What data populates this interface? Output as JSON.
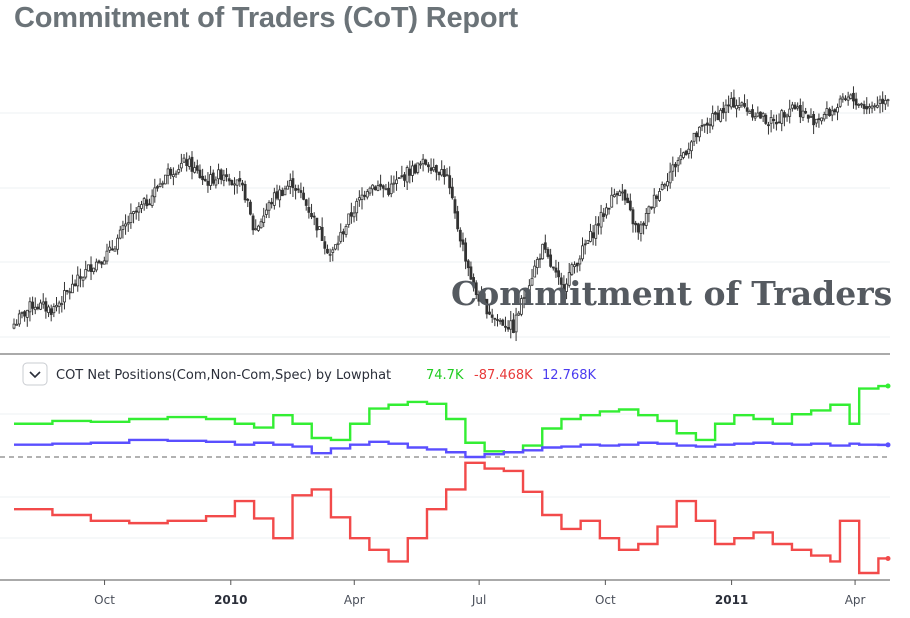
{
  "page_title": "Commitment of Traders (CoT) Report",
  "chart_data": [
    {
      "type": "candlestick",
      "title": "",
      "watermark": "Commitment of Traders",
      "x_range": [
        "2009-07-27",
        "2011-04-25"
      ],
      "y_range": [
        0,
        100
      ],
      "y_scale_note": "price axis unlabeled in image; values on relative 0-100 scale",
      "grid": true,
      "close_path": [
        {
          "x": "2009-07-27",
          "y": 4
        },
        {
          "x": "2009-08-10",
          "y": 14
        },
        {
          "x": "2009-08-24",
          "y": 11
        },
        {
          "x": "2009-09-07",
          "y": 22
        },
        {
          "x": "2009-09-21",
          "y": 33
        },
        {
          "x": "2009-10-05",
          "y": 40
        },
        {
          "x": "2009-10-19",
          "y": 56
        },
        {
          "x": "2009-11-02",
          "y": 66
        },
        {
          "x": "2009-11-16",
          "y": 80
        },
        {
          "x": "2009-11-30",
          "y": 85
        },
        {
          "x": "2009-12-14",
          "y": 75
        },
        {
          "x": "2009-12-28",
          "y": 80
        },
        {
          "x": "2010-01-11",
          "y": 70
        },
        {
          "x": "2010-01-18",
          "y": 50
        },
        {
          "x": "2010-02-01",
          "y": 67
        },
        {
          "x": "2010-02-15",
          "y": 75
        },
        {
          "x": "2010-03-01",
          "y": 59
        },
        {
          "x": "2010-03-15",
          "y": 38
        },
        {
          "x": "2010-03-29",
          "y": 58
        },
        {
          "x": "2010-04-12",
          "y": 74
        },
        {
          "x": "2010-04-26",
          "y": 71
        },
        {
          "x": "2010-05-10",
          "y": 80
        },
        {
          "x": "2010-05-24",
          "y": 85
        },
        {
          "x": "2010-06-07",
          "y": 79
        },
        {
          "x": "2010-06-14",
          "y": 56
        },
        {
          "x": "2010-06-28",
          "y": 20
        },
        {
          "x": "2010-07-12",
          "y": 7
        },
        {
          "x": "2010-07-26",
          "y": 2
        },
        {
          "x": "2010-08-02",
          "y": 17
        },
        {
          "x": "2010-08-16",
          "y": 42
        },
        {
          "x": "2010-08-30",
          "y": 22
        },
        {
          "x": "2010-09-13",
          "y": 39
        },
        {
          "x": "2010-09-27",
          "y": 56
        },
        {
          "x": "2010-10-11",
          "y": 73
        },
        {
          "x": "2010-10-25",
          "y": 49
        },
        {
          "x": "2010-11-08",
          "y": 70
        },
        {
          "x": "2010-11-22",
          "y": 85
        },
        {
          "x": "2010-12-06",
          "y": 98
        },
        {
          "x": "2010-12-20",
          "y": 108
        },
        {
          "x": "2011-01-03",
          "y": 115
        },
        {
          "x": "2011-01-17",
          "y": 110
        },
        {
          "x": "2011-01-31",
          "y": 104
        },
        {
          "x": "2011-02-14",
          "y": 114
        },
        {
          "x": "2011-02-28",
          "y": 106
        },
        {
          "x": "2011-03-14",
          "y": 110
        },
        {
          "x": "2011-03-28",
          "y": 117
        },
        {
          "x": "2011-04-11",
          "y": 112
        },
        {
          "x": "2011-04-25",
          "y": 118
        }
      ]
    },
    {
      "type": "line",
      "title": "COT Net Positions(Com,Non-Com,Spec) by Lowphat",
      "y_range": [
        -100,
        100
      ],
      "zero_line": true,
      "x_tick_labels": [
        {
          "label": "Oct",
          "date": "2009-10-01",
          "bold": false
        },
        {
          "label": "2010",
          "date": "2010-01-01",
          "bold": true
        },
        {
          "label": "Apr",
          "date": "2010-04-01",
          "bold": false
        },
        {
          "label": "Jul",
          "date": "2010-07-01",
          "bold": false
        },
        {
          "label": "Oct",
          "date": "2010-10-01",
          "bold": false
        },
        {
          "label": "2011",
          "date": "2011-01-01",
          "bold": true
        },
        {
          "label": "Apr",
          "date": "2011-04-01",
          "bold": false
        }
      ],
      "series": [
        {
          "legend_value": "74.7K",
          "color": "#33ee33",
          "points": [
            {
              "x": "2009-07-27",
              "y": 35
            },
            {
              "x": "2009-08-24",
              "y": 38
            },
            {
              "x": "2009-09-21",
              "y": 37
            },
            {
              "x": "2009-10-19",
              "y": 40
            },
            {
              "x": "2009-11-16",
              "y": 42
            },
            {
              "x": "2009-12-14",
              "y": 40
            },
            {
              "x": "2010-01-04",
              "y": 35
            },
            {
              "x": "2010-01-18",
              "y": 31
            },
            {
              "x": "2010-02-01",
              "y": 44
            },
            {
              "x": "2010-02-15",
              "y": 35
            },
            {
              "x": "2010-03-01",
              "y": 20
            },
            {
              "x": "2010-03-15",
              "y": 18
            },
            {
              "x": "2010-03-29",
              "y": 35
            },
            {
              "x": "2010-04-12",
              "y": 51
            },
            {
              "x": "2010-04-26",
              "y": 55
            },
            {
              "x": "2010-05-10",
              "y": 58
            },
            {
              "x": "2010-05-24",
              "y": 56
            },
            {
              "x": "2010-06-07",
              "y": 40
            },
            {
              "x": "2010-06-21",
              "y": 15
            },
            {
              "x": "2010-07-05",
              "y": 6
            },
            {
              "x": "2010-07-19",
              "y": 5
            },
            {
              "x": "2010-08-02",
              "y": 12
            },
            {
              "x": "2010-08-16",
              "y": 30
            },
            {
              "x": "2010-08-30",
              "y": 40
            },
            {
              "x": "2010-09-13",
              "y": 44
            },
            {
              "x": "2010-09-27",
              "y": 48
            },
            {
              "x": "2010-10-11",
              "y": 50
            },
            {
              "x": "2010-10-25",
              "y": 44
            },
            {
              "x": "2010-11-08",
              "y": 38
            },
            {
              "x": "2010-11-22",
              "y": 25
            },
            {
              "x": "2010-12-06",
              "y": 18
            },
            {
              "x": "2010-12-20",
              "y": 35
            },
            {
              "x": "2011-01-03",
              "y": 44
            },
            {
              "x": "2011-01-17",
              "y": 40
            },
            {
              "x": "2011-01-31",
              "y": 35
            },
            {
              "x": "2011-02-14",
              "y": 45
            },
            {
              "x": "2011-02-28",
              "y": 49
            },
            {
              "x": "2011-03-14",
              "y": 55
            },
            {
              "x": "2011-03-28",
              "y": 35
            },
            {
              "x": "2011-04-04",
              "y": 72
            },
            {
              "x": "2011-04-18",
              "y": 74.7
            }
          ]
        },
        {
          "legend_value": "-87.468K",
          "color": "#f24a4a",
          "points": [
            {
              "x": "2009-07-27",
              "y": -45
            },
            {
              "x": "2009-08-24",
              "y": -50
            },
            {
              "x": "2009-09-21",
              "y": -55
            },
            {
              "x": "2009-10-19",
              "y": -57
            },
            {
              "x": "2009-11-16",
              "y": -55
            },
            {
              "x": "2009-12-14",
              "y": -51
            },
            {
              "x": "2010-01-04",
              "y": -38
            },
            {
              "x": "2010-01-18",
              "y": -53
            },
            {
              "x": "2010-02-01",
              "y": -70
            },
            {
              "x": "2010-02-15",
              "y": -33
            },
            {
              "x": "2010-03-01",
              "y": -28
            },
            {
              "x": "2010-03-15",
              "y": -52
            },
            {
              "x": "2010-03-29",
              "y": -70
            },
            {
              "x": "2010-04-12",
              "y": -80
            },
            {
              "x": "2010-04-26",
              "y": -90
            },
            {
              "x": "2010-05-10",
              "y": -70
            },
            {
              "x": "2010-05-24",
              "y": -45
            },
            {
              "x": "2010-06-07",
              "y": -28
            },
            {
              "x": "2010-06-21",
              "y": -5
            },
            {
              "x": "2010-07-05",
              "y": -10
            },
            {
              "x": "2010-07-19",
              "y": -12
            },
            {
              "x": "2010-08-02",
              "y": -30
            },
            {
              "x": "2010-08-16",
              "y": -50
            },
            {
              "x": "2010-08-30",
              "y": -62
            },
            {
              "x": "2010-09-13",
              "y": -55
            },
            {
              "x": "2010-09-27",
              "y": -70
            },
            {
              "x": "2010-10-11",
              "y": -80
            },
            {
              "x": "2010-10-25",
              "y": -75
            },
            {
              "x": "2010-11-08",
              "y": -60
            },
            {
              "x": "2010-11-22",
              "y": -38
            },
            {
              "x": "2010-12-06",
              "y": -55
            },
            {
              "x": "2010-12-20",
              "y": -75
            },
            {
              "x": "2011-01-03",
              "y": -70
            },
            {
              "x": "2011-01-17",
              "y": -65
            },
            {
              "x": "2011-01-31",
              "y": -75
            },
            {
              "x": "2011-02-14",
              "y": -80
            },
            {
              "x": "2011-02-28",
              "y": -85
            },
            {
              "x": "2011-03-14",
              "y": -90
            },
            {
              "x": "2011-03-21",
              "y": -55
            },
            {
              "x": "2011-04-04",
              "y": -100
            },
            {
              "x": "2011-04-18",
              "y": -87.468
            }
          ]
        },
        {
          "legend_value": "12.768K",
          "color": "#5a4fff",
          "points": [
            {
              "x": "2009-07-27",
              "y": 13
            },
            {
              "x": "2009-08-24",
              "y": 14
            },
            {
              "x": "2009-09-21",
              "y": 15
            },
            {
              "x": "2009-10-19",
              "y": 18
            },
            {
              "x": "2009-11-16",
              "y": 17
            },
            {
              "x": "2009-12-14",
              "y": 16
            },
            {
              "x": "2010-01-04",
              "y": 13
            },
            {
              "x": "2010-01-18",
              "y": 15
            },
            {
              "x": "2010-02-01",
              "y": 13
            },
            {
              "x": "2010-02-15",
              "y": 11
            },
            {
              "x": "2010-03-01",
              "y": 4
            },
            {
              "x": "2010-03-15",
              "y": 9
            },
            {
              "x": "2010-03-29",
              "y": 13
            },
            {
              "x": "2010-04-12",
              "y": 16
            },
            {
              "x": "2010-04-26",
              "y": 14
            },
            {
              "x": "2010-05-10",
              "y": 10
            },
            {
              "x": "2010-05-24",
              "y": 8
            },
            {
              "x": "2010-06-07",
              "y": 5
            },
            {
              "x": "2010-06-21",
              "y": 0
            },
            {
              "x": "2010-07-05",
              "y": 3
            },
            {
              "x": "2010-07-19",
              "y": 5
            },
            {
              "x": "2010-08-02",
              "y": 7
            },
            {
              "x": "2010-08-16",
              "y": 10
            },
            {
              "x": "2010-08-30",
              "y": 11
            },
            {
              "x": "2010-09-13",
              "y": 13
            },
            {
              "x": "2010-09-27",
              "y": 12
            },
            {
              "x": "2010-10-11",
              "y": 13
            },
            {
              "x": "2010-10-25",
              "y": 15
            },
            {
              "x": "2010-11-08",
              "y": 14
            },
            {
              "x": "2010-11-22",
              "y": 12
            },
            {
              "x": "2010-12-06",
              "y": 11
            },
            {
              "x": "2010-12-20",
              "y": 13
            },
            {
              "x": "2011-01-03",
              "y": 14
            },
            {
              "x": "2011-01-17",
              "y": 15
            },
            {
              "x": "2011-01-31",
              "y": 14
            },
            {
              "x": "2011-02-14",
              "y": 13
            },
            {
              "x": "2011-02-28",
              "y": 14
            },
            {
              "x": "2011-03-14",
              "y": 12
            },
            {
              "x": "2011-03-28",
              "y": 14
            },
            {
              "x": "2011-04-04",
              "y": 13
            },
            {
              "x": "2011-04-18",
              "y": 12.768
            }
          ]
        }
      ]
    }
  ],
  "colors": {
    "title": "#6b7378",
    "grid": "#eef0f3",
    "candle": "#333333",
    "separator": "#555555",
    "zero_line": "#666666",
    "legend_text": "#2a2e39"
  },
  "icons": {
    "collapse": "chevron-down-icon"
  }
}
